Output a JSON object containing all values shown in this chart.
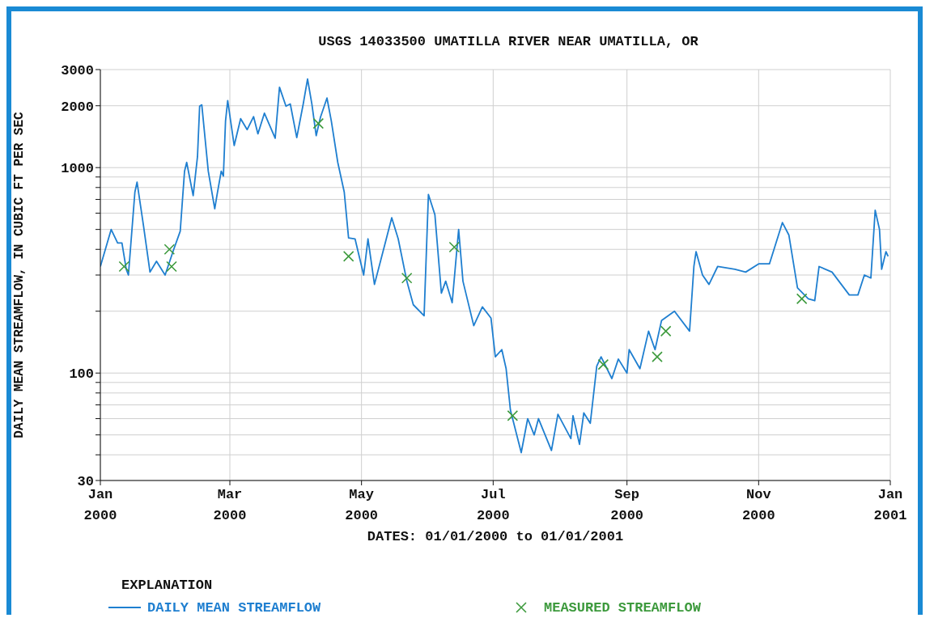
{
  "chart_data": {
    "type": "line",
    "title": "USGS 14033500 UMATILLA RIVER NEAR UMATILLA, OR",
    "xlabel": "DATES: 01/01/2000 to 01/01/2001",
    "ylabel": "DAILY MEAN STREAMFLOW, IN CUBIC FT PER SEC",
    "legend_title": "EXPLANATION",
    "legend": "bottom",
    "grid": true,
    "log": "y",
    "xlim": [
      "2000-01-01",
      "2001-01-01"
    ],
    "xticks": [
      {
        "value": "2000-01-01",
        "label": "Jan 2000"
      },
      {
        "value": "2000-03-01",
        "label": "Mar 2000"
      },
      {
        "value": "2000-05-01",
        "label": "May 2000"
      },
      {
        "value": "2000-07-01",
        "label": "Jul 2000"
      },
      {
        "value": "2000-09-01",
        "label": "Sep 2000"
      },
      {
        "value": "2000-11-01",
        "label": "Nov 2000"
      },
      {
        "value": "2001-01-01",
        "label": "Jan 2001"
      }
    ],
    "ylim": [
      30,
      3000
    ],
    "yticks": [
      30,
      {
        "value": 40,
        "label": null
      },
      {
        "value": 50,
        "label": null
      },
      {
        "value": 60,
        "label": null
      },
      {
        "value": 70,
        "label": null
      },
      {
        "value": 80,
        "label": null
      },
      {
        "value": 90,
        "label": null
      },
      100,
      {
        "value": 200,
        "label": null
      },
      {
        "value": 300,
        "label": null
      },
      {
        "value": 400,
        "label": null
      },
      {
        "value": 500,
        "label": null
      },
      {
        "value": 600,
        "label": null
      },
      {
        "value": 700,
        "label": null
      },
      {
        "value": 800,
        "label": null
      },
      {
        "value": 900,
        "label": null
      },
      1000,
      2000,
      3000
    ],
    "series": [
      {
        "name": "DAILY MEAN STREAMFLOW",
        "marker": "none",
        "line_style": "solid",
        "color": "#1f7fd0",
        "x": [
          "2000-01-01",
          "2000-01-06",
          "2000-01-09",
          "2000-01-11",
          "2000-01-13",
          "2000-01-14",
          "2000-01-17",
          "2000-01-18",
          "2000-01-21",
          "2000-01-24",
          "2000-01-27",
          "2000-01-31",
          "2000-02-04",
          "2000-02-07",
          "2000-02-09",
          "2000-02-10",
          "2000-02-13",
          "2000-02-15",
          "2000-02-16",
          "2000-02-17",
          "2000-02-20",
          "2000-02-23",
          "2000-02-24",
          "2000-02-26",
          "2000-02-27",
          "2000-02-28",
          "2000-02-29",
          "2000-03-03",
          "2000-03-06",
          "2000-03-09",
          "2000-03-12",
          "2000-03-14",
          "2000-03-17",
          "2000-03-22",
          "2000-03-24",
          "2000-03-27",
          "2000-03-29",
          "2000-04-01",
          "2000-04-04",
          "2000-04-06",
          "2000-04-08",
          "2000-04-10",
          "2000-04-12",
          "2000-04-15",
          "2000-04-17",
          "2000-04-20",
          "2000-04-23",
          "2000-04-25",
          "2000-04-28",
          "2000-05-02",
          "2000-05-04",
          "2000-05-07",
          "2000-05-12",
          "2000-05-15",
          "2000-05-18",
          "2000-05-22",
          "2000-05-25",
          "2000-05-30",
          "2000-06-01",
          "2000-06-04",
          "2000-06-07",
          "2000-06-09",
          "2000-06-12",
          "2000-06-15",
          "2000-06-17",
          "2000-06-22",
          "2000-06-26",
          "2000-06-30",
          "2000-07-02",
          "2000-07-05",
          "2000-07-07",
          "2000-07-09",
          "2000-07-14",
          "2000-07-17",
          "2000-07-20",
          "2000-07-22",
          "2000-07-28",
          "2000-07-31",
          "2000-08-06",
          "2000-08-07",
          "2000-08-10",
          "2000-08-12",
          "2000-08-15",
          "2000-08-18",
          "2000-08-20",
          "2000-08-25",
          "2000-08-28",
          "2000-09-01",
          "2000-09-02",
          "2000-09-07",
          "2000-09-11",
          "2000-09-14",
          "2000-09-17",
          "2000-09-23",
          "2000-09-30",
          "2000-10-02",
          "2000-10-03",
          "2000-10-06",
          "2000-10-09",
          "2000-10-13",
          "2000-10-21",
          "2000-10-26",
          "2000-11-01",
          "2000-11-06",
          "2000-11-12",
          "2000-11-15",
          "2000-11-19",
          "2000-11-24",
          "2000-11-27",
          "2000-11-29",
          "2000-12-05",
          "2000-12-13",
          "2000-12-17",
          "2000-12-20",
          "2000-12-23",
          "2000-12-25",
          "2000-12-27",
          "2000-12-28",
          "2000-12-30",
          "2000-12-31"
        ],
        "values": [
          330,
          500,
          430,
          430,
          320,
          300,
          760,
          850,
          520,
          310,
          350,
          300,
          400,
          490,
          960,
          1060,
          730,
          1130,
          1990,
          2020,
          960,
          630,
          730,
          960,
          910,
          1690,
          2120,
          1280,
          1730,
          1530,
          1770,
          1460,
          1840,
          1390,
          2460,
          1990,
          2040,
          1400,
          2040,
          2700,
          2040,
          1430,
          1760,
          2180,
          1690,
          1060,
          760,
          455,
          450,
          300,
          450,
          270,
          430,
          570,
          450,
          280,
          215,
          190,
          740,
          590,
          245,
          280,
          220,
          500,
          280,
          170,
          210,
          185,
          120,
          130,
          105,
          66,
          41,
          60,
          50,
          60,
          42,
          63,
          48,
          62,
          45,
          64,
          57,
          108,
          120,
          94,
          117,
          100,
          130,
          105,
          160,
          130,
          180,
          200,
          160,
          330,
          390,
          300,
          270,
          330,
          320,
          310,
          340,
          340,
          540,
          470,
          260,
          230,
          225,
          330,
          310,
          240,
          240,
          300,
          290,
          620,
          500,
          320,
          390,
          370
        ]
      },
      {
        "name": "MEASURED STREAMFLOW",
        "type": "scatter",
        "marker": "cross",
        "color": "#3d9a3d",
        "x": [
          "2000-01-12",
          "2000-02-02",
          "2000-02-03",
          "2000-04-11",
          "2000-04-25",
          "2000-05-22",
          "2000-06-13",
          "2000-07-10",
          "2000-08-21",
          "2000-09-15",
          "2000-09-19",
          "2000-11-21"
        ],
        "values": [
          330,
          400,
          330,
          1640,
          370,
          290,
          410,
          62,
          110,
          120,
          160,
          230
        ]
      }
    ]
  }
}
